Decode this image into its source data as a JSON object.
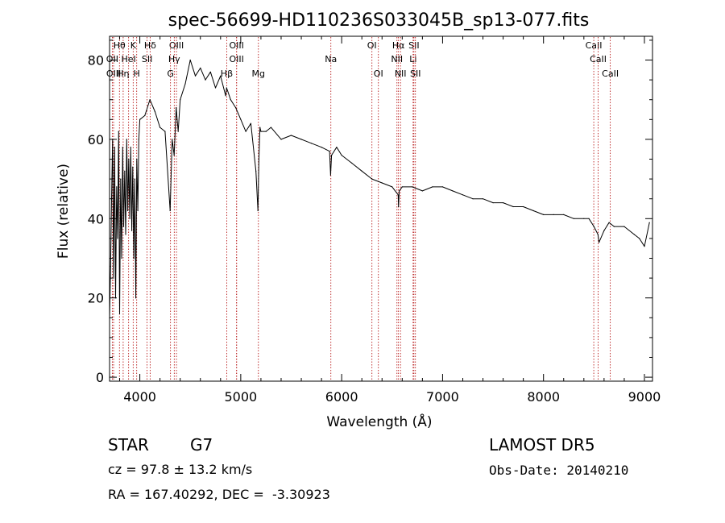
{
  "colors": {
    "spectrum": "#000000",
    "line_marker": "#b00000",
    "axes": "#000000"
  },
  "chart_data": {
    "type": "line",
    "title": "spec-56699-HD110236S033045B_sp13-077.fits",
    "xlabel": "Wavelength (Å)",
    "ylabel": "Flux (relative)",
    "xlim": [
      3700,
      9080
    ],
    "ylim": [
      -1,
      86
    ],
    "x_ticks": [
      4000,
      5000,
      6000,
      7000,
      8000,
      9000
    ],
    "y_ticks": [
      0,
      20,
      40,
      60,
      80
    ],
    "grid": false,
    "series": [
      {
        "x": [
          3700,
          3710,
          3720,
          3730,
          3740,
          3750,
          3760,
          3770,
          3780,
          3790,
          3800,
          3810,
          3820,
          3830,
          3840,
          3850,
          3860,
          3870,
          3880,
          3890,
          3900,
          3910,
          3920,
          3930,
          3940,
          3950,
          3960,
          3970,
          3980,
          3990,
          4000,
          4050,
          4100,
          4150,
          4200,
          4250,
          4300,
          4320,
          4340,
          4360,
          4380,
          4400,
          4450,
          4500,
          4550,
          4600,
          4650,
          4700,
          4750,
          4800,
          4850,
          4860,
          4900,
          4950,
          5000,
          5050,
          5100,
          5150,
          5170,
          5180,
          5190,
          5200,
          5250,
          5300,
          5400,
          5500,
          5600,
          5700,
          5800,
          5880,
          5890,
          5900,
          5950,
          6000,
          6100,
          6200,
          6300,
          6400,
          6500,
          6560,
          6563,
          6570,
          6600,
          6700,
          6800,
          6900,
          7000,
          7100,
          7200,
          7300,
          7400,
          7500,
          7600,
          7700,
          7800,
          7900,
          8000,
          8100,
          8200,
          8300,
          8400,
          8450,
          8500,
          8540,
          8550,
          8600,
          8650,
          8700,
          8800,
          8900,
          8950,
          9000,
          9050
        ],
        "y": [
          15,
          28,
          45,
          60,
          25,
          58,
          20,
          48,
          35,
          62,
          16,
          50,
          30,
          58,
          38,
          52,
          36,
          60,
          42,
          55,
          40,
          58,
          37,
          53,
          30,
          50,
          20,
          55,
          42,
          60,
          65,
          66,
          70,
          67,
          63,
          62,
          42,
          60,
          56,
          68,
          62,
          70,
          74,
          80,
          76,
          78,
          75,
          77,
          73,
          76,
          71,
          73,
          70,
          68,
          65,
          62,
          64,
          52,
          42,
          55,
          63,
          62,
          62,
          63,
          60,
          61,
          60,
          59,
          58,
          57,
          51,
          56,
          58,
          56,
          54,
          52,
          50,
          49,
          48,
          46,
          43,
          47,
          48,
          48,
          47,
          48,
          48,
          47,
          46,
          45,
          45,
          44,
          44,
          43,
          43,
          42,
          41,
          41,
          41,
          40,
          40,
          40,
          38,
          36,
          34,
          37,
          39,
          38,
          38,
          36,
          35,
          33,
          39
        ]
      }
    ],
    "spectral_lines": [
      {
        "label": "Hθ",
        "x": 3798,
        "row": 1
      },
      {
        "label": "K",
        "x": 3934,
        "row": 1
      },
      {
        "label": "Hδ",
        "x": 4102,
        "row": 1
      },
      {
        "label": "OIII",
        "x": 4363,
        "row": 1
      },
      {
        "label": "OIII",
        "x": 4959,
        "row": 1
      },
      {
        "label": "OI",
        "x": 6300,
        "row": 1
      },
      {
        "label": "Hα",
        "x": 6563,
        "row": 1
      },
      {
        "label": "SII",
        "x": 6716,
        "row": 1
      },
      {
        "label": "CaII",
        "x": 8498,
        "row": 1
      },
      {
        "label": "OII",
        "x": 3727,
        "row": 2
      },
      {
        "label": "HeI",
        "x": 3889,
        "row": 2
      },
      {
        "label": "SII",
        "x": 4072,
        "row": 2
      },
      {
        "label": "Hγ",
        "x": 4341,
        "row": 2
      },
      {
        "label": "OIII",
        "x": 4959,
        "row": 2
      },
      {
        "label": "Na",
        "x": 5893,
        "row": 2
      },
      {
        "label": "NII",
        "x": 6548,
        "row": 2
      },
      {
        "label": "Li",
        "x": 6708,
        "row": 2
      },
      {
        "label": "CaII",
        "x": 8542,
        "row": 2
      },
      {
        "label": "OIII",
        "x": 3740,
        "row": 3
      },
      {
        "label": "Hη",
        "x": 3835,
        "row": 3
      },
      {
        "label": "H",
        "x": 3969,
        "row": 3
      },
      {
        "label": "G",
        "x": 4304,
        "row": 3
      },
      {
        "label": "Hβ",
        "x": 4861,
        "row": 3
      },
      {
        "label": "Mg",
        "x": 5175,
        "row": 3
      },
      {
        "label": "OI",
        "x": 6364,
        "row": 3
      },
      {
        "label": "NII",
        "x": 6583,
        "row": 3
      },
      {
        "label": "SII",
        "x": 6731,
        "row": 3
      },
      {
        "label": "CaII",
        "x": 8662,
        "row": 3
      }
    ]
  },
  "info": {
    "object_type": "STAR",
    "subclass": "G7",
    "cz": "cz = 97.8 ± 13.2 km/s",
    "radec": "RA = 167.40292, DEC =  -3.30923",
    "survey": "LAMOST DR5",
    "obs_date": "Obs-Date: 20140210"
  }
}
